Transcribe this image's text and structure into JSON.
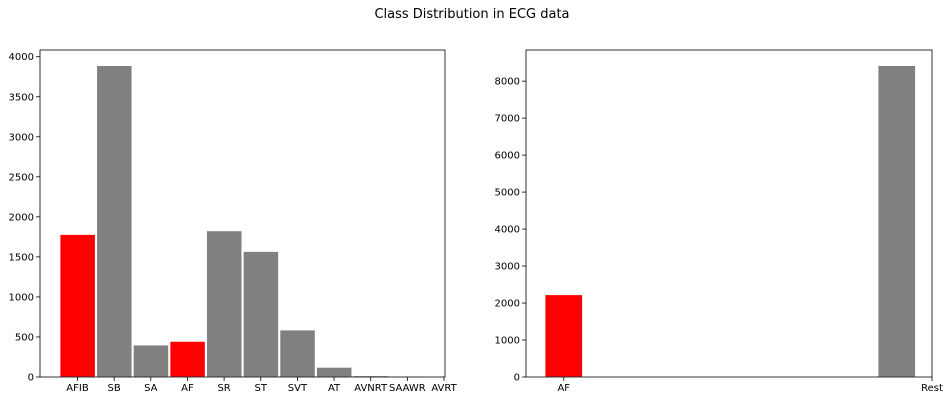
{
  "figure": {
    "title": "Class Distribution in ECG data"
  },
  "chart_data": [
    {
      "type": "bar",
      "categories": [
        "AFIB",
        "SB",
        "SA",
        "AF",
        "SR",
        "ST",
        "SVT",
        "AT",
        "AVNRT",
        "SAAWR",
        "AVRT"
      ],
      "values": [
        1780,
        3889,
        399,
        445,
        1826,
        1568,
        587,
        121,
        16,
        7,
        8
      ],
      "colors": [
        "#ff0000",
        "#808080",
        "#808080",
        "#ff0000",
        "#808080",
        "#808080",
        "#808080",
        "#808080",
        "#808080",
        "#808080",
        "#808080"
      ],
      "yticks": [
        0,
        500,
        1000,
        1500,
        2000,
        2500,
        3000,
        3500,
        4000
      ],
      "ylim": [
        0,
        4084
      ],
      "grid": false,
      "legend": "none"
    },
    {
      "type": "bar",
      "categories": [
        "AF",
        "Rest"
      ],
      "values": [
        2225,
        8421
      ],
      "colors": [
        "#ff0000",
        "#808080"
      ],
      "yticks": [
        0,
        1000,
        2000,
        3000,
        4000,
        5000,
        6000,
        7000,
        8000
      ],
      "ylim": [
        0,
        8842
      ],
      "grid": false,
      "legend": "none"
    }
  ]
}
